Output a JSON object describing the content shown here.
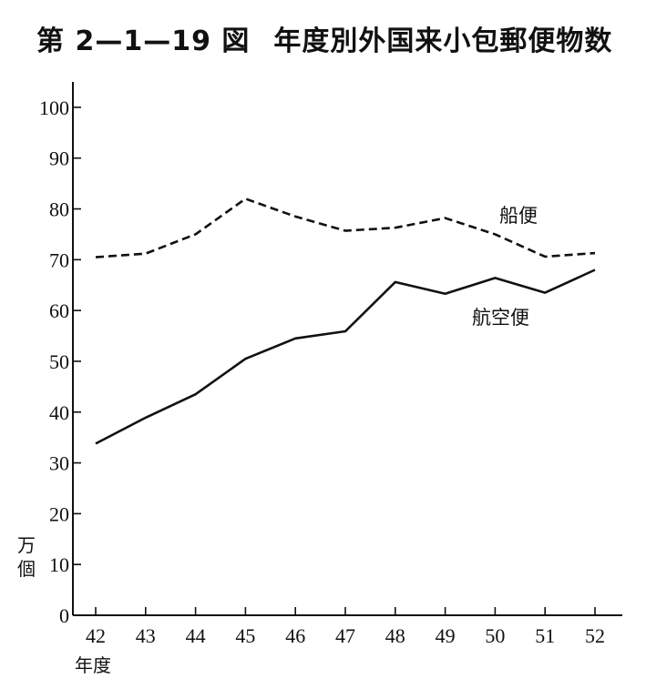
{
  "title": {
    "figure_no": "第 2—1—19 図",
    "text": "年度別外国来小包郵便物数"
  },
  "chart_data": {
    "type": "line",
    "categories": [
      "42",
      "43",
      "44",
      "45",
      "46",
      "47",
      "48",
      "49",
      "50",
      "51",
      "52"
    ],
    "xlabel": "年度",
    "ylabel": "万個",
    "ylim": [
      0,
      105
    ],
    "yticks": [
      0,
      10,
      20,
      30,
      40,
      50,
      60,
      70,
      80,
      90,
      100
    ],
    "grid": false,
    "series": [
      {
        "name": "船便",
        "style": "dashed",
        "values": [
          70.5,
          71.2,
          75,
          82,
          78.5,
          75.7,
          76.3,
          78.2,
          75,
          70.6,
          71.3
        ]
      },
      {
        "name": "航空便",
        "style": "solid",
        "values": [
          33.8,
          38.9,
          43.5,
          50.5,
          54.5,
          55.9,
          65.6,
          63.3,
          66.4,
          63.5,
          68
        ]
      }
    ]
  }
}
